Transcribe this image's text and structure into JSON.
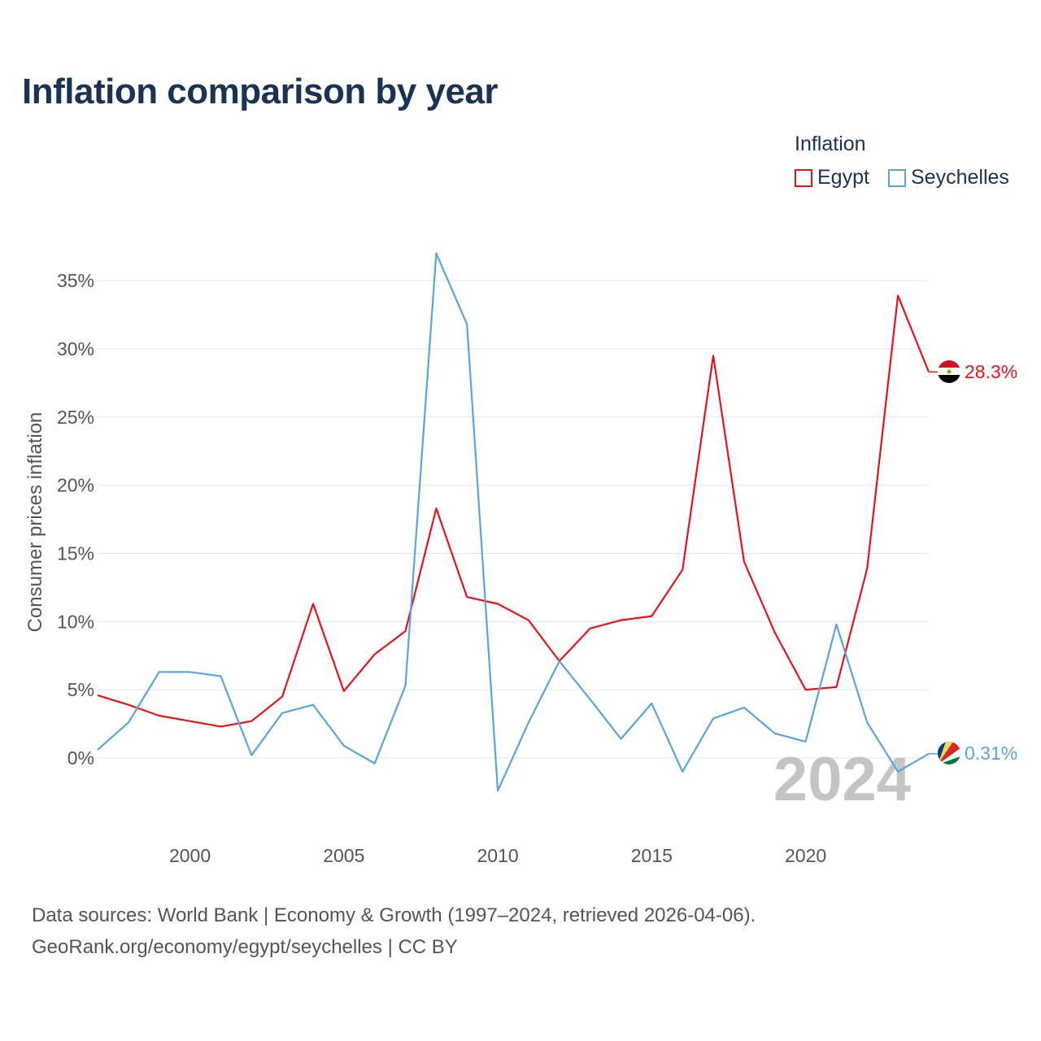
{
  "chart_data": {
    "type": "line",
    "title": "Inflation comparison by year",
    "ylabel": "Consumer prices inflation",
    "xlabel": "",
    "legend_title": "Inflation",
    "year_overlay": "2024",
    "x": [
      1997,
      1998,
      1999,
      2000,
      2001,
      2002,
      2003,
      2004,
      2005,
      2006,
      2007,
      2008,
      2009,
      2010,
      2011,
      2012,
      2013,
      2014,
      2015,
      2016,
      2017,
      2018,
      2019,
      2020,
      2021,
      2022,
      2023,
      2024
    ],
    "xlim": [
      1997,
      2024
    ],
    "ylim": [
      -5,
      37
    ],
    "xticks": [
      2000,
      2005,
      2010,
      2015,
      2020
    ],
    "yticks": [
      0,
      5,
      10,
      15,
      20,
      25,
      30,
      35
    ],
    "ytick_labels": [
      "0%",
      "5%",
      "10%",
      "15%",
      "20%",
      "25%",
      "30%",
      "35%"
    ],
    "series": [
      {
        "name": "Egypt",
        "color": "#e8131a",
        "end_label": "28.3%",
        "flag": "egypt-flag",
        "values": [
          4.6,
          3.9,
          3.1,
          2.7,
          2.3,
          2.7,
          4.5,
          11.3,
          4.9,
          7.6,
          9.3,
          18.3,
          11.8,
          11.3,
          10.1,
          7.1,
          9.5,
          10.1,
          10.4,
          13.8,
          29.5,
          14.4,
          9.2,
          5.0,
          5.2,
          13.9,
          33.9,
          28.3
        ]
      },
      {
        "name": "Seychelles",
        "color": "#5ba3e0",
        "end_label": "0.31%",
        "flag": "seychelles-flag",
        "values": [
          0.6,
          2.6,
          6.3,
          6.3,
          6.0,
          0.2,
          3.3,
          3.9,
          0.9,
          -0.4,
          5.3,
          37.0,
          31.8,
          -2.4,
          2.6,
          7.1,
          4.3,
          1.4,
          4.0,
          -1.0,
          2.9,
          3.7,
          1.8,
          1.2,
          9.8,
          2.6,
          -1.0,
          0.31
        ]
      }
    ]
  },
  "footer": {
    "line1": "Data sources: World Bank | Economy & Growth (1997–2024, retrieved 2026-04-06).",
    "line2": "GeoRank.org/economy/egypt/seychelles | CC BY"
  }
}
